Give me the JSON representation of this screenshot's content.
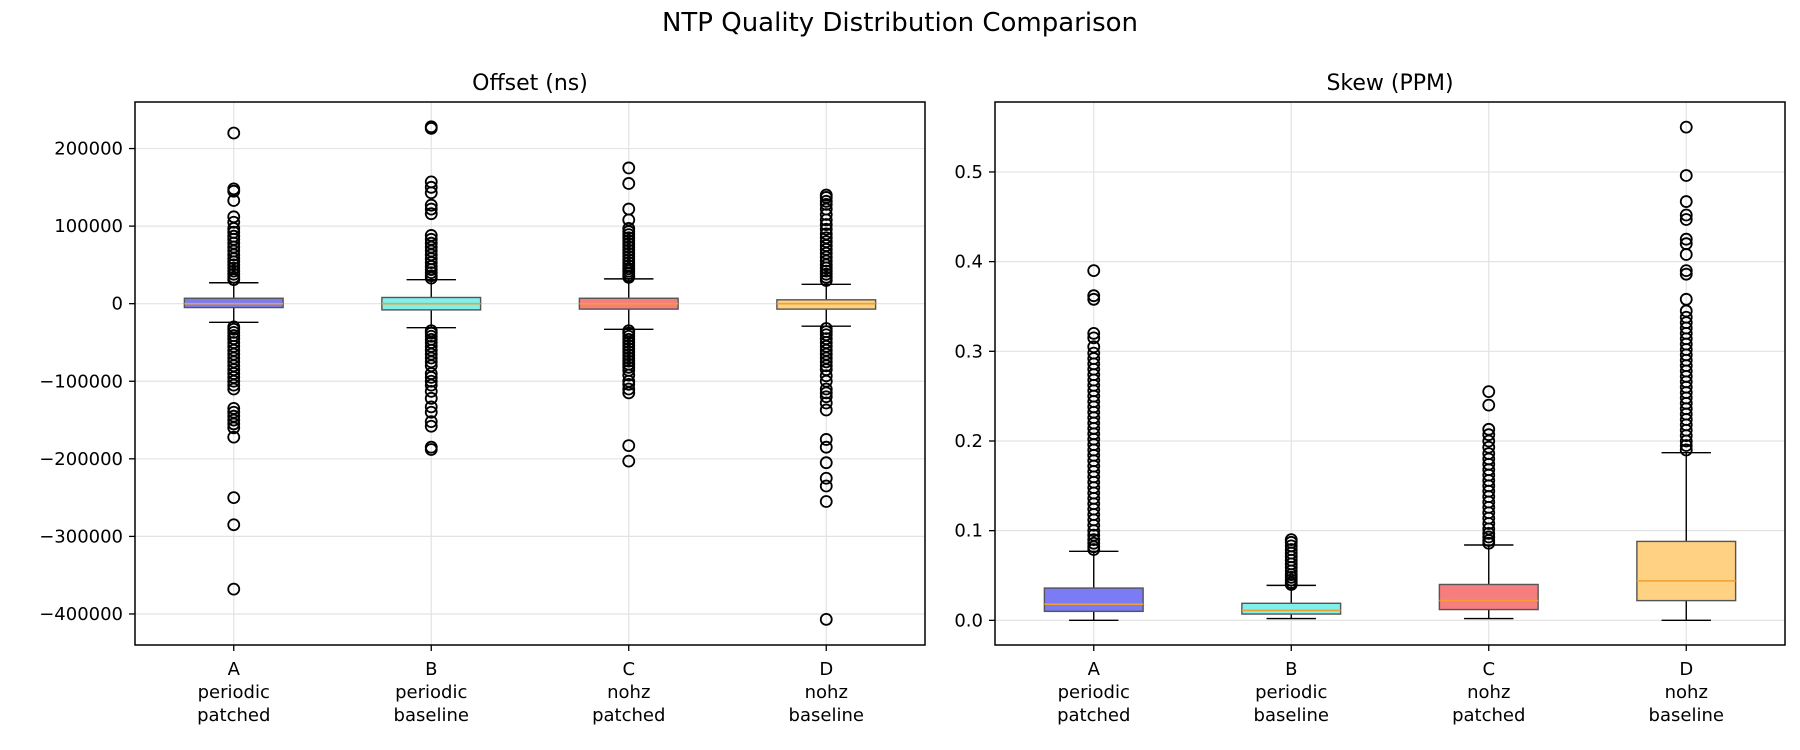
{
  "figure": {
    "title": "NTP Quality Distribution Comparison"
  },
  "colors": {
    "A": "#7b7bf5",
    "B": "#80f0ea",
    "C": "#f77e7e",
    "D": "#fed183",
    "median": "#f0a030",
    "outline": "#555555"
  },
  "chart_data": [
    {
      "type": "box",
      "title": "Offset (ns)",
      "xlabel": "",
      "ylabel": "",
      "ylim": [
        -440000,
        260000
      ],
      "yticks": [
        200000,
        100000,
        0,
        -100000,
        -200000,
        -300000,
        -400000
      ],
      "ytick_labels": [
        "200000",
        "100000",
        "0",
        "−100000",
        "−200000",
        "−300000",
        "−400000"
      ],
      "grid": true,
      "categories": [
        {
          "lines": [
            "A",
            "periodic",
            "patched"
          ]
        },
        {
          "lines": [
            "B",
            "periodic",
            "baseline"
          ]
        },
        {
          "lines": [
            "C",
            "nohz",
            "patched"
          ]
        },
        {
          "lines": [
            "D",
            "nohz",
            "baseline"
          ]
        }
      ],
      "boxes": [
        {
          "key": "A",
          "whislo": -24000,
          "q1": -5000,
          "med": 0,
          "q3": 7000,
          "whishi": 27000,
          "fliers": [
            220000,
            148000,
            145000,
            133000,
            112000,
            105000,
            97000,
            92000,
            87000,
            83000,
            78000,
            73000,
            68000,
            63000,
            58000,
            54000,
            50000,
            46000,
            42000,
            38000,
            34000,
            31000,
            -30000,
            -33000,
            -37000,
            -41000,
            -45000,
            -50000,
            -55000,
            -60000,
            -65000,
            -70000,
            -75000,
            -80000,
            -85000,
            -90000,
            -95000,
            -100000,
            -105000,
            -110000,
            -135000,
            -140000,
            -145000,
            -150000,
            -155000,
            -160000,
            -172000,
            -250000,
            -285000,
            -368000
          ]
        },
        {
          "key": "B",
          "whislo": -31000,
          "q1": -8000,
          "med": 0,
          "q3": 8000,
          "whishi": 31000,
          "fliers": [
            228000,
            226000,
            157000,
            150000,
            143000,
            127000,
            122000,
            116000,
            88000,
            83000,
            78000,
            73000,
            68000,
            63000,
            58000,
            53000,
            48000,
            44000,
            40000,
            36000,
            33000,
            -35000,
            -38000,
            -42000,
            -46000,
            -50000,
            -55000,
            -60000,
            -65000,
            -70000,
            -75000,
            -80000,
            -90000,
            -95000,
            -100000,
            -105000,
            -113000,
            -122000,
            -133000,
            -140000,
            -152000,
            -158000,
            -185000,
            -188000
          ]
        },
        {
          "key": "C",
          "whislo": -33000,
          "q1": -7000,
          "med": 0,
          "q3": 7000,
          "whishi": 32000,
          "fliers": [
            175000,
            155000,
            122000,
            108000,
            97000,
            93000,
            89000,
            85000,
            81000,
            77000,
            73000,
            69000,
            65000,
            61000,
            57000,
            53000,
            49000,
            45000,
            42000,
            39000,
            36000,
            34000,
            -35000,
            -38000,
            -42000,
            -46000,
            -50000,
            -54000,
            -58000,
            -62000,
            -66000,
            -70000,
            -74000,
            -78000,
            -82000,
            -86000,
            -92000,
            -100000,
            -104000,
            -110000,
            -115000,
            -183000,
            -203000
          ]
        },
        {
          "key": "D",
          "whislo": -29000,
          "q1": -7000,
          "med": 0,
          "q3": 5000,
          "whishi": 25000,
          "fliers": [
            140000,
            137000,
            132000,
            128000,
            122000,
            115000,
            108000,
            102000,
            96000,
            90000,
            85000,
            80000,
            75000,
            70000,
            65000,
            60000,
            55000,
            50000,
            46000,
            42000,
            38000,
            34000,
            30000,
            -32000,
            -36000,
            -40000,
            -45000,
            -50000,
            -55000,
            -60000,
            -65000,
            -70000,
            -75000,
            -80000,
            -85000,
            -93000,
            -100000,
            -110000,
            -115000,
            -120000,
            -128000,
            -137000,
            -175000,
            -185000,
            -205000,
            -225000,
            -235000,
            -255000,
            -407000
          ]
        }
      ]
    },
    {
      "type": "box",
      "title": "Skew (PPM)",
      "xlabel": "",
      "ylabel": "",
      "ylim": [
        -0.0275,
        0.578
      ],
      "yticks": [
        0.0,
        0.1,
        0.2,
        0.3,
        0.4,
        0.5
      ],
      "ytick_labels": [
        "0.0",
        "0.1",
        "0.2",
        "0.3",
        "0.4",
        "0.5"
      ],
      "grid": true,
      "categories": [
        {
          "lines": [
            "A",
            "periodic",
            "patched"
          ]
        },
        {
          "lines": [
            "B",
            "periodic",
            "baseline"
          ]
        },
        {
          "lines": [
            "C",
            "nohz",
            "patched"
          ]
        },
        {
          "lines": [
            "D",
            "nohz",
            "baseline"
          ]
        }
      ],
      "boxes": [
        {
          "key": "A",
          "whislo": 0.0,
          "q1": 0.01,
          "med": 0.018,
          "q3": 0.036,
          "whishi": 0.077,
          "fliers": [
            0.39,
            0.362,
            0.358,
            0.32,
            0.315,
            0.305,
            0.298,
            0.292,
            0.286,
            0.28,
            0.274,
            0.268,
            0.262,
            0.256,
            0.25,
            0.244,
            0.238,
            0.232,
            0.226,
            0.22,
            0.214,
            0.208,
            0.202,
            0.196,
            0.19,
            0.184,
            0.178,
            0.172,
            0.166,
            0.16,
            0.154,
            0.148,
            0.142,
            0.136,
            0.13,
            0.124,
            0.118,
            0.112,
            0.106,
            0.1,
            0.095,
            0.09,
            0.086,
            0.082,
            0.079
          ]
        },
        {
          "key": "B",
          "whislo": 0.002,
          "q1": 0.007,
          "med": 0.011,
          "q3": 0.019,
          "whishi": 0.039,
          "fliers": [
            0.09,
            0.087,
            0.083,
            0.079,
            0.075,
            0.071,
            0.067,
            0.063,
            0.059,
            0.055,
            0.051,
            0.048,
            0.045,
            0.042,
            0.04
          ]
        },
        {
          "key": "C",
          "whislo": 0.002,
          "q1": 0.012,
          "med": 0.022,
          "q3": 0.04,
          "whishi": 0.084,
          "fliers": [
            0.255,
            0.24,
            0.213,
            0.207,
            0.2,
            0.193,
            0.186,
            0.18,
            0.174,
            0.168,
            0.162,
            0.156,
            0.15,
            0.144,
            0.138,
            0.132,
            0.126,
            0.12,
            0.114,
            0.108,
            0.102,
            0.097,
            0.093,
            0.089,
            0.086
          ]
        },
        {
          "key": "D",
          "whislo": 0.0,
          "q1": 0.022,
          "med": 0.044,
          "q3": 0.088,
          "whishi": 0.187,
          "fliers": [
            0.55,
            0.496,
            0.467,
            0.452,
            0.447,
            0.425,
            0.42,
            0.408,
            0.39,
            0.386,
            0.358,
            0.345,
            0.338,
            0.332,
            0.326,
            0.32,
            0.314,
            0.308,
            0.302,
            0.296,
            0.29,
            0.284,
            0.278,
            0.272,
            0.266,
            0.26,
            0.254,
            0.248,
            0.242,
            0.236,
            0.23,
            0.224,
            0.218,
            0.212,
            0.206,
            0.2,
            0.195,
            0.19
          ]
        }
      ]
    }
  ]
}
